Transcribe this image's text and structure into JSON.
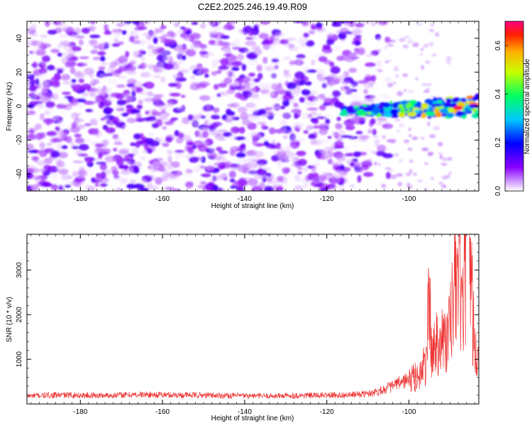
{
  "chart_data": [
    {
      "type": "heatmap",
      "title": "C2E2.2025.246.19.49.R09",
      "xlabel": "Height of straight line (km)",
      "ylabel": "Frequency (Hz)",
      "xlim": [
        -193,
        -83
      ],
      "ylim": [
        -50,
        50
      ],
      "xticks": [
        -180,
        -160,
        -140,
        -120,
        -100
      ],
      "xtick_labels": [
        "-180",
        "-160",
        "-140",
        "-120",
        "-100"
      ],
      "yticks": [
        -40,
        -20,
        0,
        20,
        40
      ],
      "ytick_labels": [
        "-40",
        "-20",
        "0",
        "20",
        "40"
      ],
      "colorbar": {
        "label": "Normalized spectral amplitude",
        "range": [
          0,
          0.7
        ],
        "ticks": [
          0,
          0.2,
          0.4,
          0.6
        ],
        "tick_labels": [
          "0.0",
          "0.2",
          "0.4",
          "0.6"
        ]
      },
      "description_regions": [
        {
          "x_range": [
            -193,
            -110
          ],
          "freq_range": [
            -50,
            50
          ],
          "amplitude_range": [
            0.0,
            0.15
          ]
        },
        {
          "x_range": [
            -116,
            -83
          ],
          "freq_range": [
            -8,
            6
          ],
          "amplitude_range": [
            0.15,
            0.7
          ]
        }
      ],
      "peak": {
        "x": -88,
        "freq": -1,
        "amplitude": 0.68
      }
    },
    {
      "type": "line",
      "xlabel": "Height of straight line (km)",
      "ylabel": "SNR (10 * v/v)",
      "xlim": [
        -193,
        -83
      ],
      "ylim": [
        0,
        3800
      ],
      "xticks": [
        -180,
        -160,
        -140,
        -120,
        -100
      ],
      "xtick_labels": [
        "-180",
        "-160",
        "-140",
        "-120",
        "-100"
      ],
      "yticks": [
        1000,
        2000,
        3000
      ],
      "ytick_labels": [
        "1000",
        "2000",
        "3000"
      ],
      "series": [
        {
          "name": "SNR",
          "color": "#ee3333",
          "x": [
            -193,
            -185,
            -175,
            -165,
            -155,
            -145,
            -135,
            -125,
            -115,
            -110,
            -107,
            -104,
            -101,
            -99,
            -97,
            -96,
            -95,
            -94.5,
            -93,
            -91,
            -90,
            -89,
            -88,
            -87,
            -86,
            -85.5,
            -85,
            -84,
            -83
          ],
          "values": [
            180,
            200,
            190,
            210,
            200,
            190,
            180,
            190,
            200,
            230,
            300,
            400,
            520,
            560,
            700,
            900,
            2300,
            1100,
            1500,
            1400,
            1700,
            2500,
            3300,
            2000,
            3500,
            3800,
            3000,
            1200,
            800
          ]
        }
      ]
    }
  ]
}
